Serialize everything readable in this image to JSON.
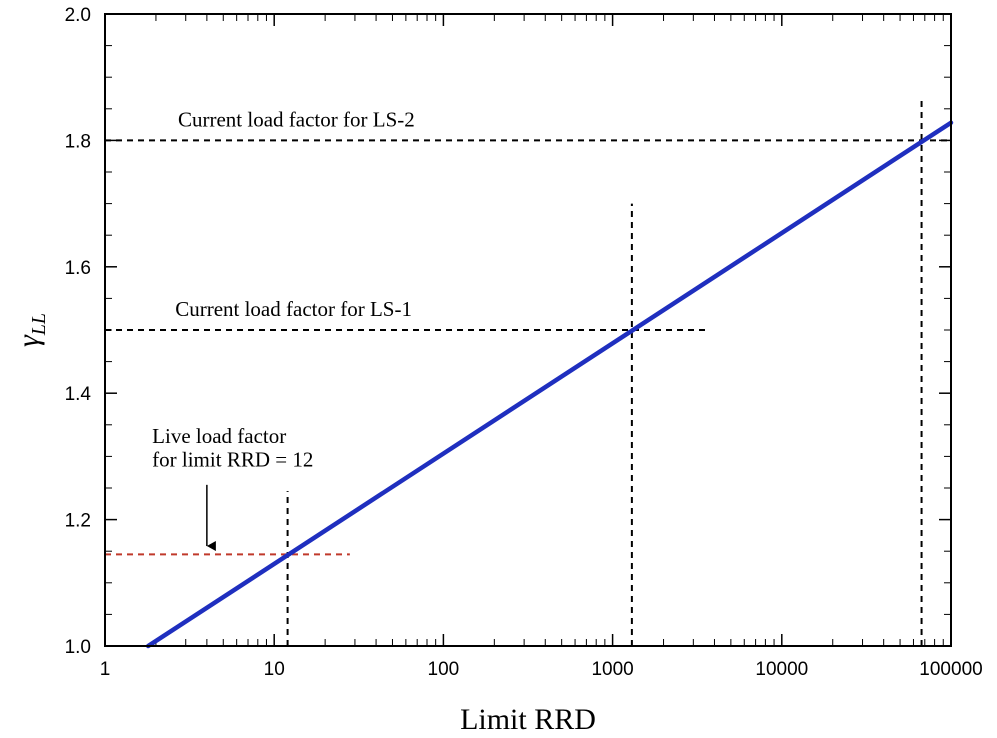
{
  "chart_data": {
    "type": "line",
    "xlabel": "Limit RRD",
    "ylabel": "γ",
    "ylabel_subscript": "LL",
    "x_scale": "log",
    "xlim": [
      1,
      100000
    ],
    "ylim": [
      1.0,
      2.0
    ],
    "x_tick_labels": [
      "1",
      "10",
      "100",
      "1000",
      "10000",
      "100000"
    ],
    "x_tick_values": [
      1,
      10,
      100,
      1000,
      10000,
      100000
    ],
    "y_tick_labels": [
      "1.0",
      "1.2",
      "1.4",
      "1.6",
      "1.8",
      "2.0"
    ],
    "y_tick_values": [
      1.0,
      1.2,
      1.4,
      1.6,
      1.8,
      2.0
    ],
    "grid": false,
    "series": [
      {
        "color": "#1f2fbf",
        "x": [
          1.8,
          100000
        ],
        "y": [
          1.0,
          1.828
        ]
      }
    ],
    "reference_lines": [
      {
        "kind": "horizontal",
        "y": 1.8,
        "x_from": 1,
        "x_to": 100000,
        "color": "#000000",
        "style": "dashed"
      },
      {
        "kind": "vertical",
        "x": 67000,
        "y_from": 1.0,
        "y_to": 1.865,
        "color": "#000000",
        "style": "dashed"
      },
      {
        "kind": "horizontal",
        "y": 1.5,
        "x_from": 1,
        "x_to": 3700,
        "color": "#000000",
        "style": "dashed"
      },
      {
        "kind": "vertical",
        "x": 1300,
        "y_from": 1.0,
        "y_to": 1.7,
        "color": "#000000",
        "style": "dashed"
      },
      {
        "kind": "horizontal",
        "y": 1.145,
        "x_from": 1,
        "x_to": 28,
        "color": "#c0392b",
        "style": "dashed"
      },
      {
        "kind": "vertical",
        "x": 12,
        "y_from": 1.0,
        "y_to": 1.245,
        "color": "#000000",
        "style": "dashed"
      }
    ],
    "annotations": [
      {
        "text": "Current load factor for LS-2",
        "x": 2.7,
        "y": 1.822
      },
      {
        "text": "Current load factor for LS-1",
        "x": 2.6,
        "y": 1.522
      },
      {
        "text": "Live load factor",
        "x": 1.9,
        "y": 1.321
      },
      {
        "text": "for limit RRD = 12",
        "x": 1.9,
        "y": 1.284
      }
    ],
    "arrow": {
      "x": 4.0,
      "y_from": 1.255,
      "y_to": 1.155
    }
  }
}
